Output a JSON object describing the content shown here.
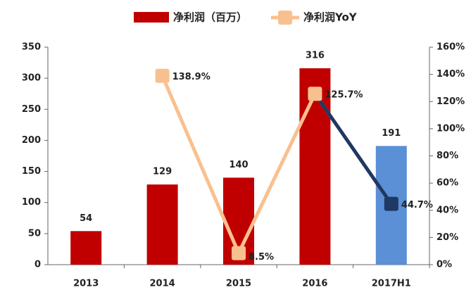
{
  "chart_data": {
    "type": "bar",
    "categories": [
      "2013",
      "2014",
      "2015",
      "2016",
      "2017H1"
    ],
    "series": [
      {
        "name": "净利润（百万）",
        "type": "bar",
        "color": "#c00000",
        "colors": [
          "#c00000",
          "#c00000",
          "#c00000",
          "#c00000",
          "#5b8fd6"
        ],
        "values": [
          54,
          129,
          140,
          316,
          191
        ]
      },
      {
        "name": "净利润YoY",
        "type": "line",
        "axis": "y2",
        "color": "#f9c08f",
        "last_segment_color": "#1f3864",
        "values": [
          null,
          138.9,
          8.5,
          125.7,
          44.7
        ],
        "value_labels": [
          null,
          "138.9%",
          "8.5%",
          "125.7%",
          "44.7%"
        ]
      }
    ],
    "ylim": [
      0,
      350
    ],
    "yticks": [
      0,
      50,
      100,
      150,
      200,
      250,
      300,
      350
    ],
    "y2lim": [
      0,
      160
    ],
    "y2ticks": [
      {
        "value": 0,
        "label": "0%"
      },
      {
        "value": 20,
        "label": "20%"
      },
      {
        "value": 40,
        "label": "40%"
      },
      {
        "value": 60,
        "label": "60%"
      },
      {
        "value": 80,
        "label": "80%"
      },
      {
        "value": 100,
        "label": "100%"
      },
      {
        "value": 120,
        "label": "120%"
      },
      {
        "value": 140,
        "label": "140%"
      },
      {
        "value": 160,
        "label": "160%"
      }
    ],
    "legend": "top"
  }
}
